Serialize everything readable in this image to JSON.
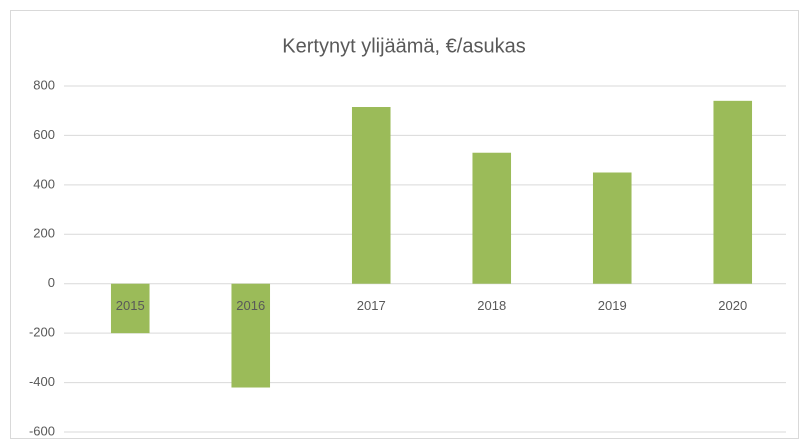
{
  "chart_data": {
    "type": "bar",
    "title": "Kertynyt ylijäämä, €/asukas",
    "categories": [
      "2015",
      "2016",
      "2017",
      "2018",
      "2019",
      "2020"
    ],
    "values": [
      -200,
      -420,
      715,
      530,
      450,
      740
    ],
    "color": "#9bbb59",
    "ylim": [
      -600,
      800
    ],
    "yticks": [
      -600,
      -400,
      -200,
      0,
      200,
      400,
      600,
      800
    ],
    "grid": true
  }
}
